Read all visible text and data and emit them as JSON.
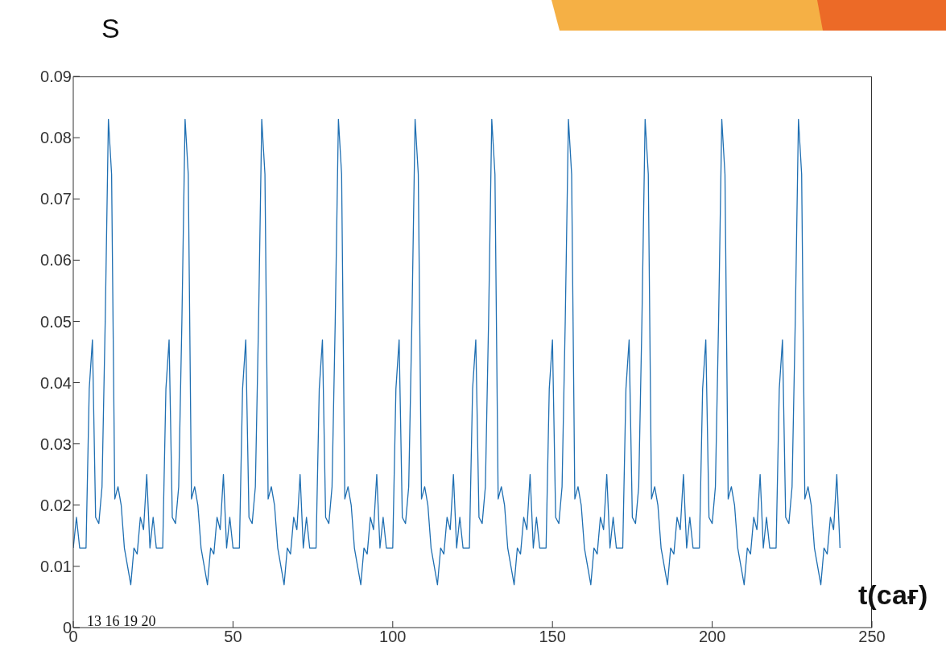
{
  "chart_data": {
    "type": "line",
    "ylabel": "S",
    "xlabel": "t(сағ)",
    "annotations": [
      "13 16 19 20"
    ],
    "x": [
      0,
      1,
      2,
      3,
      4,
      5,
      6,
      7,
      8,
      9,
      10,
      11,
      12,
      13,
      14,
      15,
      16,
      17,
      18,
      19,
      20,
      21,
      22,
      23,
      24,
      25,
      26,
      27,
      28,
      29,
      30,
      31,
      32,
      33,
      34,
      35,
      36,
      37,
      38,
      39,
      40,
      41,
      42,
      43,
      44,
      45,
      46,
      47,
      48,
      49,
      50,
      51,
      52,
      53,
      54,
      55,
      56,
      57,
      58,
      59,
      60,
      61,
      62,
      63,
      64,
      65,
      66,
      67,
      68,
      69,
      70,
      71,
      72,
      73,
      74,
      75,
      76,
      77,
      78,
      79,
      80,
      81,
      82,
      83,
      84,
      85,
      86,
      87,
      88,
      89,
      90,
      91,
      92,
      93,
      94,
      95,
      96,
      97,
      98,
      99,
      100,
      101,
      102,
      103,
      104,
      105,
      106,
      107,
      108,
      109,
      110,
      111,
      112,
      113,
      114,
      115,
      116,
      117,
      118,
      119,
      120,
      121,
      122,
      123,
      124,
      125,
      126,
      127,
      128,
      129,
      130,
      131,
      132,
      133,
      134,
      135,
      136,
      137,
      138,
      139,
      140,
      141,
      142,
      143,
      144,
      145,
      146,
      147,
      148,
      149,
      150,
      151,
      152,
      153,
      154,
      155,
      156,
      157,
      158,
      159,
      160,
      161,
      162,
      163,
      164,
      165,
      166,
      167,
      168,
      169,
      170,
      171,
      172,
      173,
      174,
      175,
      176,
      177,
      178,
      179,
      180,
      181,
      182,
      183,
      184,
      185,
      186,
      187,
      188,
      189,
      190,
      191,
      192,
      193,
      194,
      195,
      196,
      197,
      198,
      199,
      200,
      201,
      202,
      203,
      204,
      205,
      206,
      207,
      208,
      209,
      210,
      211,
      212,
      213,
      214,
      215,
      216,
      217,
      218,
      219,
      220,
      221,
      222,
      223,
      224,
      225,
      226,
      227,
      228,
      229,
      230,
      231,
      232,
      233,
      234,
      235,
      236,
      237,
      238,
      239,
      240
    ],
    "series": [
      {
        "color": "#1f6fb2",
        "values": [
          0.013,
          0.018,
          0.013,
          0.013,
          0.013,
          0.039,
          0.047,
          0.018,
          0.017,
          0.023,
          0.05,
          0.083,
          0.074,
          0.021,
          0.023,
          0.02,
          0.013,
          0.01,
          0.007,
          0.013,
          0.012,
          0.018,
          0.016,
          0.025,
          0.013,
          0.018,
          0.013,
          0.013,
          0.013,
          0.039,
          0.047,
          0.018,
          0.017,
          0.023,
          0.05,
          0.083,
          0.074,
          0.021,
          0.023,
          0.02,
          0.013,
          0.01,
          0.007,
          0.013,
          0.012,
          0.018,
          0.016,
          0.025,
          0.013,
          0.018,
          0.013,
          0.013,
          0.013,
          0.039,
          0.047,
          0.018,
          0.017,
          0.023,
          0.05,
          0.083,
          0.074,
          0.021,
          0.023,
          0.02,
          0.013,
          0.01,
          0.007,
          0.013,
          0.012,
          0.018,
          0.016,
          0.025,
          0.013,
          0.018,
          0.013,
          0.013,
          0.013,
          0.039,
          0.047,
          0.018,
          0.017,
          0.023,
          0.05,
          0.083,
          0.074,
          0.021,
          0.023,
          0.02,
          0.013,
          0.01,
          0.007,
          0.013,
          0.012,
          0.018,
          0.016,
          0.025,
          0.013,
          0.018,
          0.013,
          0.013,
          0.013,
          0.039,
          0.047,
          0.018,
          0.017,
          0.023,
          0.05,
          0.083,
          0.074,
          0.021,
          0.023,
          0.02,
          0.013,
          0.01,
          0.007,
          0.013,
          0.012,
          0.018,
          0.016,
          0.025,
          0.013,
          0.018,
          0.013,
          0.013,
          0.013,
          0.039,
          0.047,
          0.018,
          0.017,
          0.023,
          0.05,
          0.083,
          0.074,
          0.021,
          0.023,
          0.02,
          0.013,
          0.01,
          0.007,
          0.013,
          0.012,
          0.018,
          0.016,
          0.025,
          0.013,
          0.018,
          0.013,
          0.013,
          0.013,
          0.039,
          0.047,
          0.018,
          0.017,
          0.023,
          0.05,
          0.083,
          0.074,
          0.021,
          0.023,
          0.02,
          0.013,
          0.01,
          0.007,
          0.013,
          0.012,
          0.018,
          0.016,
          0.025,
          0.013,
          0.018,
          0.013,
          0.013,
          0.013,
          0.039,
          0.047,
          0.018,
          0.017,
          0.023,
          0.05,
          0.083,
          0.074,
          0.021,
          0.023,
          0.02,
          0.013,
          0.01,
          0.007,
          0.013,
          0.012,
          0.018,
          0.016,
          0.025,
          0.013,
          0.018,
          0.013,
          0.013,
          0.013,
          0.039,
          0.047,
          0.018,
          0.017,
          0.023,
          0.05,
          0.083,
          0.074,
          0.021,
          0.023,
          0.02,
          0.013,
          0.01,
          0.007,
          0.013,
          0.012,
          0.018,
          0.016,
          0.025,
          0.013,
          0.018,
          0.013,
          0.013,
          0.013,
          0.039,
          0.047,
          0.018,
          0.017,
          0.023,
          0.05,
          0.083,
          0.074,
          0.021,
          0.023,
          0.02,
          0.013,
          0.01,
          0.007,
          0.013,
          0.012,
          0.018,
          0.016,
          0.025,
          0.013
        ]
      }
    ],
    "xlim": [
      0,
      250
    ],
    "xticks": [
      0,
      50,
      100,
      150,
      200,
      250
    ],
    "ylim": [
      0,
      0.09
    ],
    "yticks": [
      0,
      0.01,
      0.02,
      0.03,
      0.04,
      0.05,
      0.06,
      0.07,
      0.08,
      0.09
    ],
    "grid": false,
    "legend": false,
    "marker": "none",
    "line_style": "solid"
  }
}
